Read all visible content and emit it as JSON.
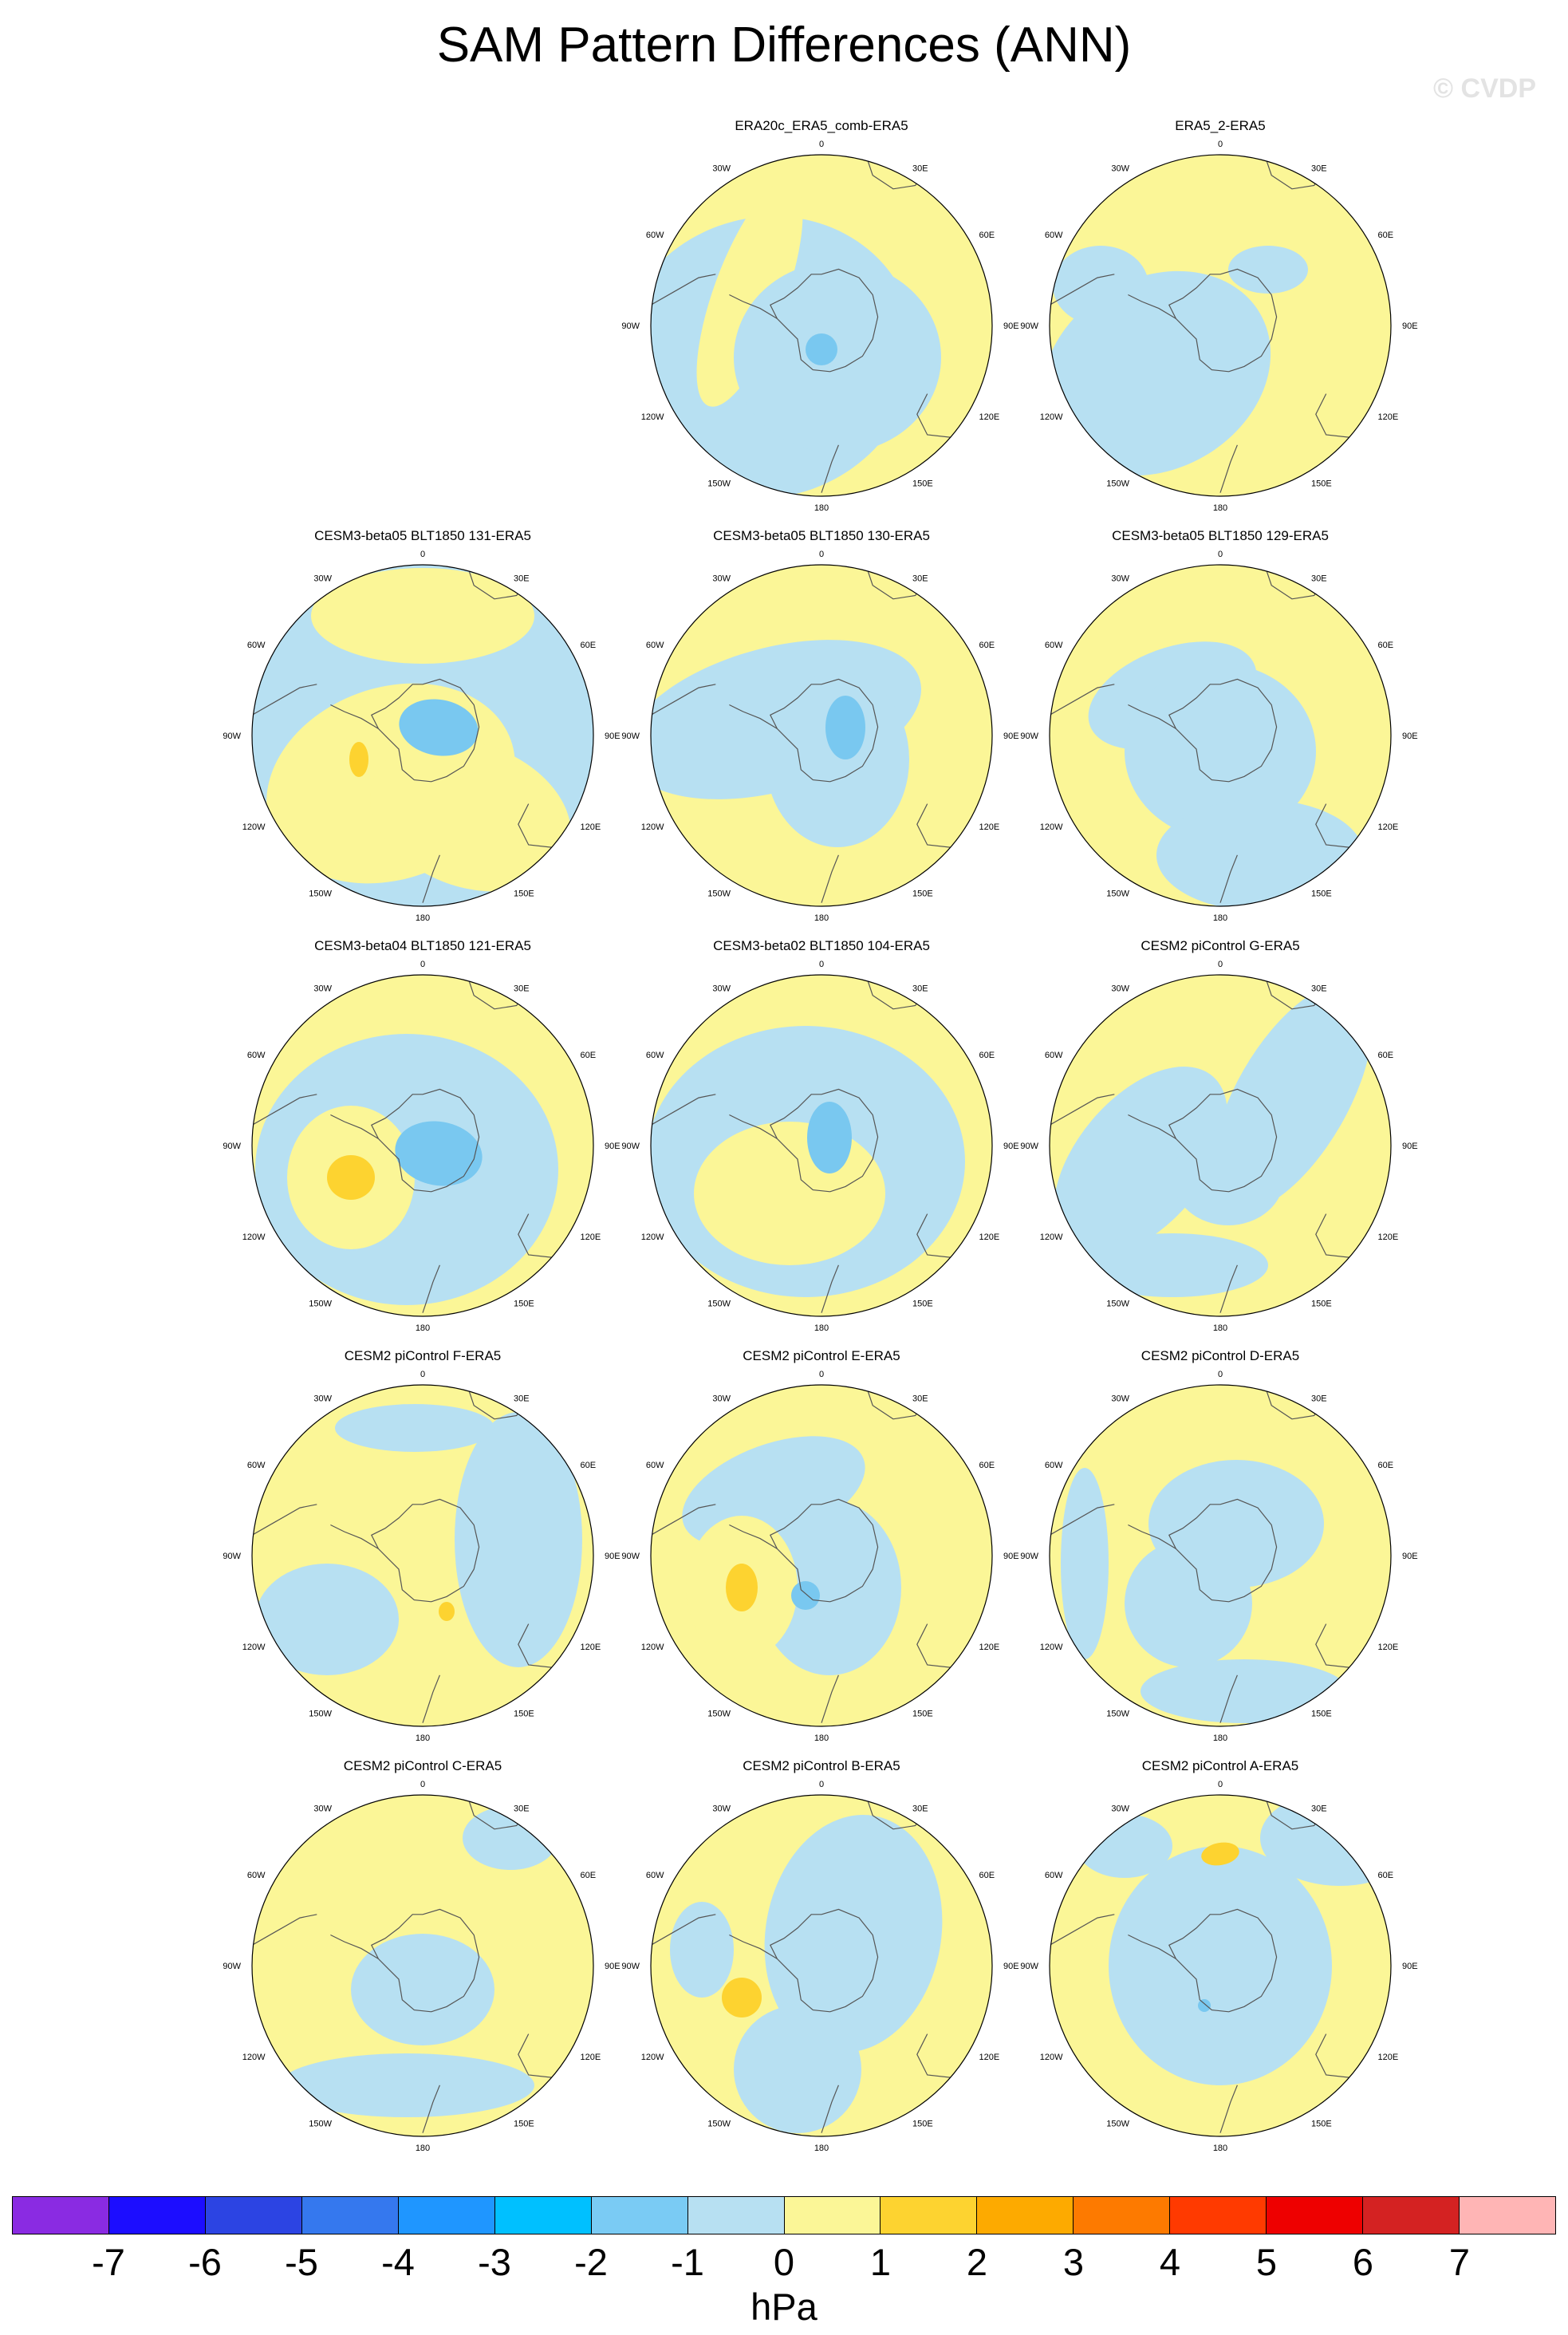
{
  "title": "SAM Pattern Differences (ANN)",
  "watermark": "© CVDP",
  "colors": {
    "negative": "#b7e0f2",
    "positive": "#fbf697",
    "pos_strong": "#fdd330",
    "neg_strong": "#79c8f0",
    "coast": "#555555"
  },
  "longitude_labels": [
    "0",
    "30E",
    "60E",
    "90E",
    "120E",
    "150E",
    "180",
    "150W",
    "120W",
    "90W",
    "60W",
    "30W"
  ],
  "panels": [
    {
      "title": "ERA20c_ERA5_comb-ERA5",
      "background": "positive"
    },
    {
      "title": "ERA5_2-ERA5",
      "background": "positive"
    },
    {
      "title": "CESM3-beta05 BLT1850 131-ERA5",
      "background": "negative"
    },
    {
      "title": "CESM3-beta05 BLT1850 130-ERA5",
      "background": "positive"
    },
    {
      "title": "CESM3-beta05 BLT1850 129-ERA5",
      "background": "positive"
    },
    {
      "title": "CESM3-beta04 BLT1850 121-ERA5",
      "background": "positive"
    },
    {
      "title": "CESM3-beta02 BLT1850 104-ERA5",
      "background": "positive"
    },
    {
      "title": "CESM2 piControl G-ERA5",
      "background": "positive"
    },
    {
      "title": "CESM2 piControl F-ERA5",
      "background": "positive"
    },
    {
      "title": "CESM2 piControl E-ERA5",
      "background": "positive"
    },
    {
      "title": "CESM2 piControl D-ERA5",
      "background": "positive"
    },
    {
      "title": "CESM2 piControl C-ERA5",
      "background": "positive"
    },
    {
      "title": "CESM2 piControl B-ERA5",
      "background": "positive"
    },
    {
      "title": "CESM2 piControl A-ERA5",
      "background": "positive"
    }
  ],
  "colorbar": {
    "colors": [
      "#8a2be2",
      "#1c0dff",
      "#2c44e3",
      "#3578ee",
      "#1f96ff",
      "#00c0ff",
      "#7acbf4",
      "#b7e0f2",
      "#fbf697",
      "#fdd330",
      "#fdaa00",
      "#fd7a00",
      "#ff3a00",
      "#ee0000",
      "#d42222",
      "#ffb5b5"
    ],
    "tick_labels": [
      "-7",
      "-6",
      "-5",
      "-4",
      "-3",
      "-2",
      "-1",
      "0",
      "1",
      "2",
      "3",
      "4",
      "5",
      "6",
      "7"
    ],
    "units": "hPa"
  }
}
